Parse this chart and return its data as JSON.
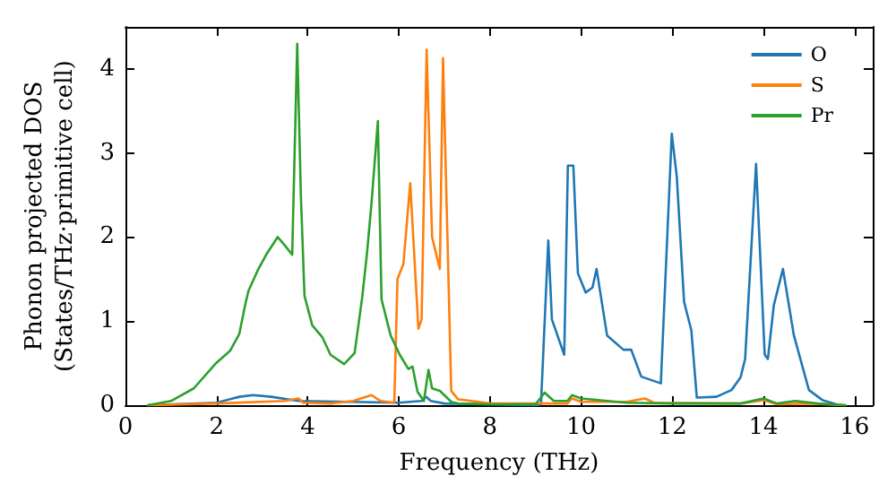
{
  "chart_data": {
    "type": "line",
    "xlabel": "Frequency (THz)",
    "ylabel": "Phonon projected DOS\n(States/THz·primitive cell)",
    "xlim": [
      0,
      16.4
    ],
    "xticks": [
      0,
      2,
      4,
      6,
      8,
      10,
      12,
      14,
      16
    ],
    "ylim": [
      0,
      4.5
    ],
    "yticks": [
      0,
      1,
      2,
      3,
      4
    ],
    "grid": false,
    "legend": "top right",
    "marker": "none",
    "line_style": "solid",
    "series": [
      {
        "name": "O",
        "color": "#1f77b4",
        "x": [
          0.5,
          2,
          2.5,
          2.8,
          3.2,
          3.8,
          6,
          6.5,
          6.6,
          6.7,
          7,
          9,
          9.12,
          9.28,
          9.36,
          9.63,
          9.71,
          9.83,
          9.93,
          10.1,
          10.25,
          10.34,
          10.57,
          10.93,
          11.1,
          11.32,
          11.75,
          11.99,
          12.1,
          12.26,
          12.42,
          12.54,
          12.97,
          13.3,
          13.5,
          13.6,
          13.84,
          14.03,
          14.1,
          14.23,
          14.43,
          14.67,
          15,
          15.3,
          15.6
        ],
        "values": [
          0,
          0.03,
          0.1,
          0.12,
          0.1,
          0.05,
          0.03,
          0.05,
          0.1,
          0.05,
          0.02,
          0,
          0.01,
          1.96,
          1.02,
          0.6,
          2.85,
          2.85,
          1.57,
          1.34,
          1.4,
          1.62,
          0.83,
          0.66,
          0.66,
          0.34,
          0.26,
          3.23,
          2.72,
          1.23,
          0.89,
          0.09,
          0.1,
          0.18,
          0.33,
          0.55,
          2.87,
          0.6,
          0.55,
          1.19,
          1.62,
          0.83,
          0.18,
          0.06,
          0.01
        ]
      },
      {
        "name": "S",
        "color": "#ff7f0e",
        "x": [
          0.5,
          2,
          3.5,
          3.8,
          3.9,
          4.5,
          5,
          5.4,
          5.6,
          5.9,
          5.97,
          6.1,
          6.25,
          6.43,
          6.5,
          6.61,
          6.73,
          6.9,
          6.97,
          7.15,
          7.3,
          7.6,
          8,
          9,
          9.7,
          9.8,
          10,
          11,
          11.4,
          11.6,
          13.5,
          14,
          14.3,
          15,
          15.8
        ],
        "values": [
          0,
          0.02,
          0.05,
          0.08,
          0.03,
          0.02,
          0.05,
          0.12,
          0.05,
          0.03,
          1.5,
          1.68,
          2.64,
          0.91,
          1.02,
          4.23,
          2,
          1.62,
          4.13,
          0.17,
          0.07,
          0.05,
          0.02,
          0.02,
          0.02,
          0.08,
          0.04,
          0.04,
          0.08,
          0.03,
          0.02,
          0.06,
          0.01,
          0.02,
          0
        ]
      },
      {
        "name": "Pr",
        "color": "#2ca02c",
        "x": [
          0.5,
          1,
          1.5,
          1.97,
          2.3,
          2.5,
          2.63,
          2.7,
          2.9,
          3.1,
          3.34,
          3.5,
          3.66,
          3.77,
          3.85,
          3.93,
          4.1,
          4.32,
          4.5,
          4.8,
          5.03,
          5.2,
          5.3,
          5.4,
          5.54,
          5.62,
          5.82,
          6.02,
          6.21,
          6.3,
          6.41,
          6.55,
          6.65,
          6.73,
          6.9,
          7.15,
          7.3,
          8,
          9,
          9.2,
          9.4,
          9.7,
          9.8,
          10,
          11,
          12,
          13.5,
          14,
          14.3,
          14.7,
          15.2,
          15.8
        ],
        "values": [
          0,
          0.05,
          0.2,
          0.49,
          0.65,
          0.85,
          1.2,
          1.36,
          1.6,
          1.8,
          2,
          1.9,
          1.79,
          4.3,
          2.5,
          1.3,
          0.95,
          0.81,
          0.6,
          0.49,
          0.62,
          1.3,
          1.8,
          2.4,
          3.38,
          1.26,
          0.83,
          0.6,
          0.43,
          0.46,
          0.16,
          0.05,
          0.42,
          0.2,
          0.17,
          0.04,
          0.02,
          0.01,
          0.01,
          0.15,
          0.05,
          0.05,
          0.12,
          0.08,
          0.03,
          0.02,
          0.02,
          0.08,
          0.02,
          0.05,
          0.02,
          0
        ]
      }
    ]
  }
}
